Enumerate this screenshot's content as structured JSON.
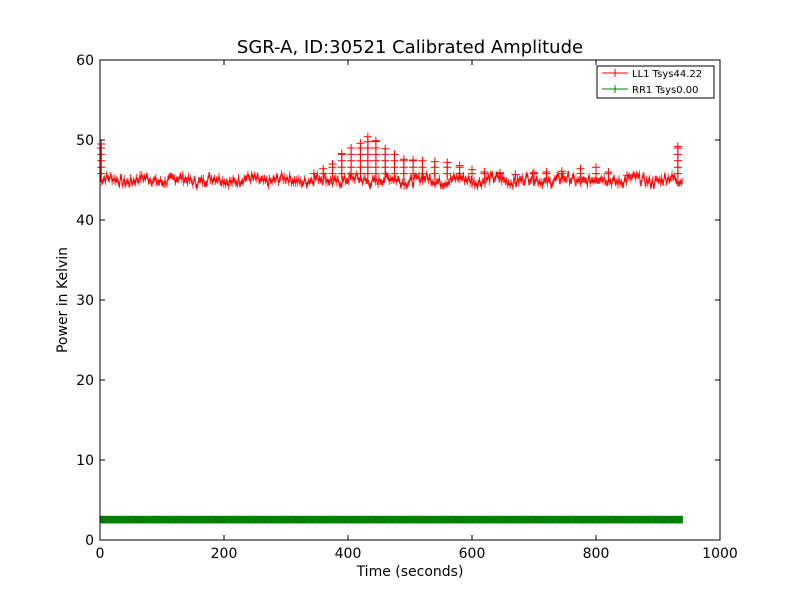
{
  "chart_data": {
    "type": "line",
    "title": "SGR-A, ID:30521 Calibrated Amplitude",
    "xlabel": "Time (seconds)",
    "ylabel": "Power in Kelvin",
    "xlim": [
      0,
      1000
    ],
    "ylim": [
      0,
      60
    ],
    "xticks": [
      "0",
      "200",
      "400",
      "600",
      "800",
      "1000"
    ],
    "yticks": [
      "0",
      "10",
      "20",
      "30",
      "40",
      "50",
      "60"
    ],
    "grid": false,
    "legend_position": "top-right",
    "colors": {
      "LL1": "#ff0000",
      "RR1": "#008000"
    },
    "series": [
      {
        "name": "LL1 Tsys44.22",
        "color": "#ff0000",
        "x_range": [
          0,
          940
        ],
        "baseline": 45.0,
        "start_spike": {
          "x": 2,
          "y": 49.5
        },
        "end_spike": {
          "x": 932,
          "y": 49.2
        },
        "spikes": [
          {
            "x": 345,
            "y": 45.8
          },
          {
            "x": 360,
            "y": 46.4
          },
          {
            "x": 375,
            "y": 47.0
          },
          {
            "x": 390,
            "y": 48.3
          },
          {
            "x": 405,
            "y": 49.0
          },
          {
            "x": 420,
            "y": 49.6
          },
          {
            "x": 432,
            "y": 50.4
          },
          {
            "x": 445,
            "y": 49.9
          },
          {
            "x": 460,
            "y": 48.9
          },
          {
            "x": 475,
            "y": 48.2
          },
          {
            "x": 490,
            "y": 47.6
          },
          {
            "x": 505,
            "y": 47.5
          },
          {
            "x": 520,
            "y": 47.4
          },
          {
            "x": 540,
            "y": 47.3
          },
          {
            "x": 560,
            "y": 47.2
          },
          {
            "x": 580,
            "y": 46.8
          },
          {
            "x": 600,
            "y": 46.3
          },
          {
            "x": 620,
            "y": 46.0
          },
          {
            "x": 645,
            "y": 45.9
          },
          {
            "x": 670,
            "y": 45.7
          },
          {
            "x": 700,
            "y": 45.9
          },
          {
            "x": 720,
            "y": 46.0
          },
          {
            "x": 745,
            "y": 46.1
          },
          {
            "x": 775,
            "y": 46.4
          },
          {
            "x": 800,
            "y": 46.6
          },
          {
            "x": 820,
            "y": 46.0
          },
          {
            "x": 850,
            "y": 45.6
          }
        ]
      },
      {
        "name": "RR1 Tsys0.00",
        "color": "#008000",
        "x_range": [
          0,
          940
        ],
        "y_range": [
          2.1,
          3.0
        ]
      }
    ]
  }
}
